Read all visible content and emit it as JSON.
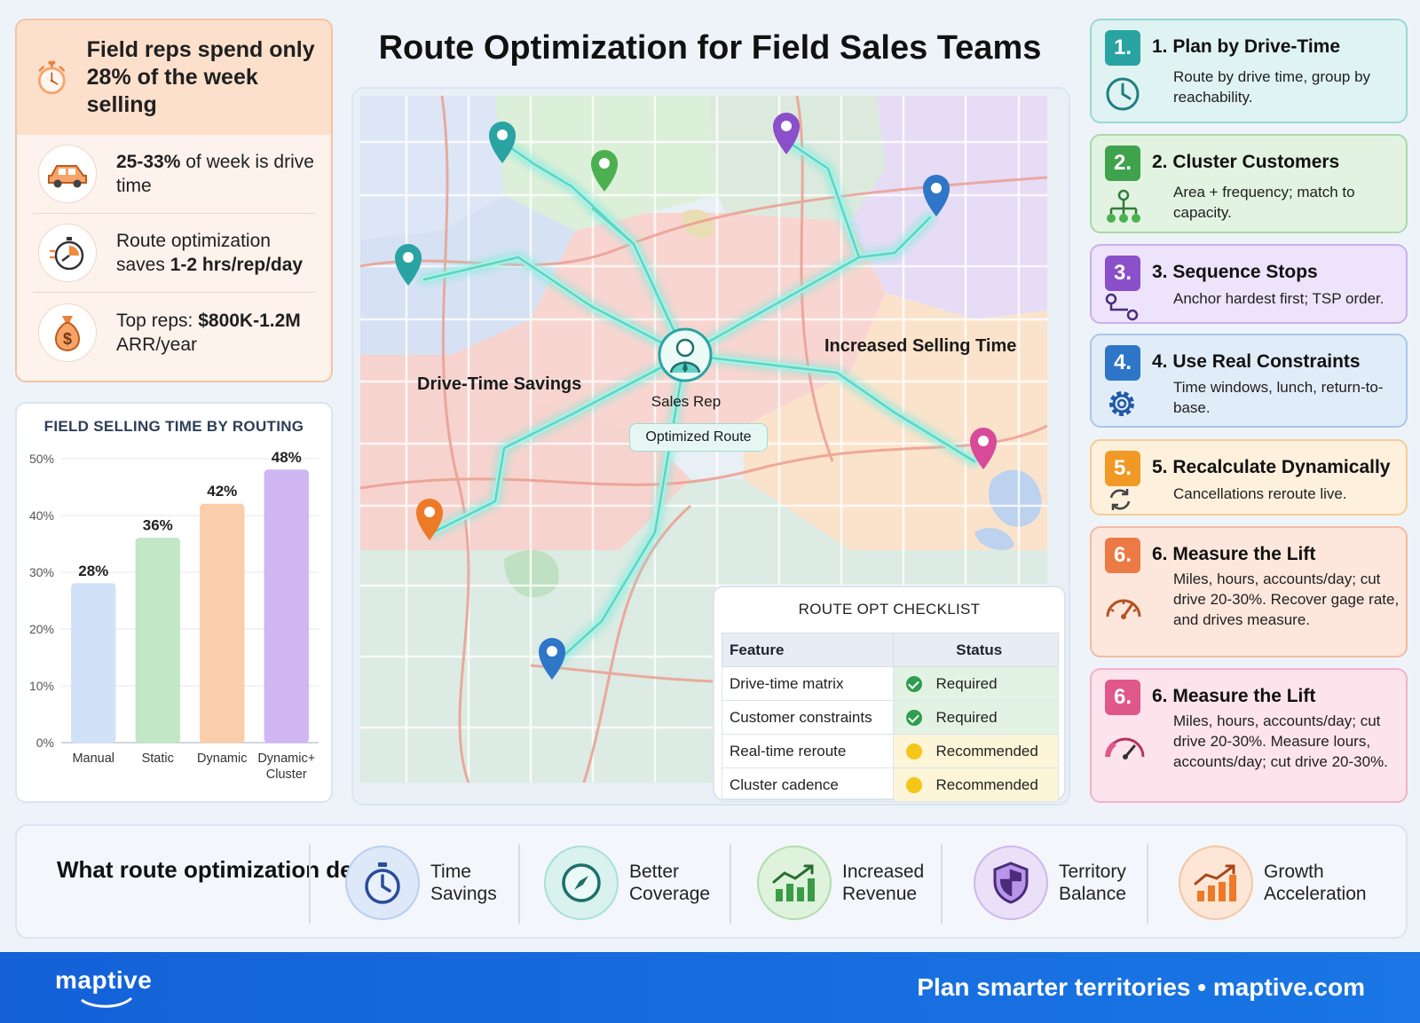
{
  "title": "Route Optimization for Field Sales Teams",
  "stats": {
    "headline": "Field reps spend only 28% of the week selling",
    "items": [
      {
        "icon": "car-icon",
        "bold": "25-33%",
        "text": " of week is drive time"
      },
      {
        "icon": "timer-icon",
        "pre": "Route optimization saves ",
        "bold": "1-2 hrs/rep/day"
      },
      {
        "icon": "money-bag-icon",
        "pre": "Top reps: ",
        "bold": "$800K-1.2M",
        "text": " ARR/year"
      }
    ]
  },
  "chart_data": {
    "type": "bar",
    "title": "FIELD SELLING TIME BY ROUTING",
    "categories": [
      "Manual",
      "Static",
      "Dynamic",
      "Dynamic+ Cluster"
    ],
    "values": [
      28,
      36,
      42,
      48
    ],
    "value_labels": [
      "28%",
      "36%",
      "42%",
      "48%"
    ],
    "ylim": [
      0,
      50
    ],
    "yticks": [
      "0%",
      "10%",
      "20%",
      "30%",
      "40%",
      "50%"
    ],
    "colors": [
      "#cfe0f8",
      "#bfe6c3",
      "#fbcba6",
      "#cdb2f2"
    ],
    "grid": true
  },
  "map": {
    "labels": {
      "savings": "Drive-Time Savings",
      "selling": "Increased Selling Time",
      "sales_rep": "Sales Rep",
      "optimized_route": "Optimized Route"
    }
  },
  "checklist": {
    "title": "ROUTE OPT CHECKLIST",
    "headers": [
      "Feature",
      "Status"
    ],
    "rows": [
      {
        "feature": "Drive-time matrix",
        "status": "Required",
        "kind": "req"
      },
      {
        "feature": "Customer constraints",
        "status": "Required",
        "kind": "req"
      },
      {
        "feature": "Real-time reroute",
        "status": "Recommended",
        "kind": "rec"
      },
      {
        "feature": "Cluster cadence",
        "status": "Recommended",
        "kind": "rec"
      }
    ]
  },
  "steps": [
    {
      "num": "1.",
      "title": "1. Plan by Drive-Time",
      "desc": "Route by drive time, group by reachability.",
      "icon": "clock-icon",
      "color": "#2aa3a3",
      "bg": "#dff3f2",
      "border": "#9ad7d3"
    },
    {
      "num": "2.",
      "title": "2. Cluster Customers",
      "desc": "Area + frequency; match to capacity.",
      "icon": "cluster-icon",
      "color": "#3fa34d",
      "bg": "#e2f3e1",
      "border": "#a9d9a8"
    },
    {
      "num": "3.",
      "title": "3. Sequence Stops",
      "desc": "Anchor hardest first; TSP order.",
      "icon": "route-icon",
      "color": "#8a4fc9",
      "bg": "#ede3fa",
      "border": "#c9b0ec"
    },
    {
      "num": "4.",
      "title": "4. Use Real Constraints",
      "desc": "Time windows, lunch, return-to-base.",
      "icon": "gear-icon",
      "color": "#2f76c8",
      "bg": "#e1ecf9",
      "border": "#a9c7ea"
    },
    {
      "num": "5.",
      "title": "5. Recalculate Dynamically",
      "desc": "Cancellations reroute live.",
      "icon": "refresh-icon",
      "color": "#f09a25",
      "bg": "#fdf0dc",
      "border": "#f4cf95"
    },
    {
      "num": "6.",
      "title": "6. Measure the Lift",
      "desc": "Miles, hours, accounts/day; cut drive 20-30%. Recover gage rate, and drives measure.",
      "icon": "gauge-icon",
      "color": "#ec7a44",
      "bg": "#fde7dc",
      "border": "#f3bba1"
    },
    {
      "num": "6.",
      "title": "6. Measure the Lift",
      "desc": "Miles, hours, accounts/day; cut drive 20-30%. Measure lours, accounts/day; cut drive 20-30%.",
      "icon": "speedometer-icon",
      "color": "#e0578a",
      "bg": "#fde3ec",
      "border": "#f2b2c8"
    }
  ],
  "bottom": {
    "title": "What route optimization delivers",
    "benefits": [
      {
        "icon": "stopwatch-icon",
        "label": "Time Savings"
      },
      {
        "icon": "compass-icon",
        "label": "Better Coverage"
      },
      {
        "icon": "bar-growth-icon",
        "label": "Increased Revenue"
      },
      {
        "icon": "shield-icon",
        "label": "Territory Balance"
      },
      {
        "icon": "growth-chart-icon",
        "label": "Growth Acceleration"
      }
    ]
  },
  "footer": {
    "logo": "maptive",
    "tagline": "Plan smarter territories  •  maptive.com"
  }
}
